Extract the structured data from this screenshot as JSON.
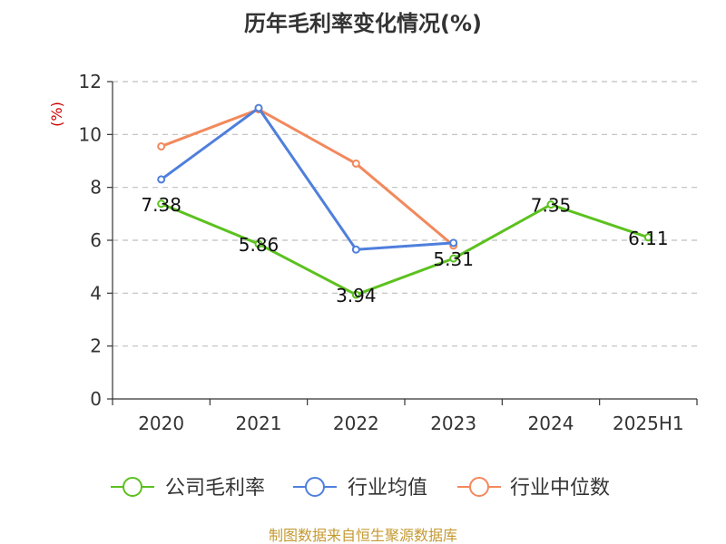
{
  "chart_data": {
    "type": "line",
    "title": "历年毛利率变化情况(%)",
    "ylabel": "(%)",
    "categories": [
      "2020",
      "2021",
      "2022",
      "2023",
      "2024",
      "2025H1"
    ],
    "ylim": [
      0,
      12
    ],
    "yticks": [
      0,
      2,
      4,
      6,
      8,
      10,
      12
    ],
    "grid": true,
    "legend_position": "bottom",
    "series": [
      {
        "name": "公司毛利率",
        "color": "#5cc11f",
        "values": [
          7.38,
          5.86,
          3.94,
          5.31,
          7.35,
          6.11
        ],
        "labels": [
          "7.38",
          "5.86",
          "3.94",
          "5.31",
          "7.35",
          "6.11"
        ]
      },
      {
        "name": "行业均值",
        "color": "#4f7fdc",
        "values": [
          8.3,
          11.0,
          5.65,
          5.9,
          null,
          null
        ]
      },
      {
        "name": "行业中位数",
        "color": "#f2895c",
        "values": [
          9.55,
          10.95,
          8.9,
          5.8,
          null,
          null
        ]
      }
    ]
  },
  "footer": {
    "source": "制图数据来自恒生聚源数据库"
  },
  "colors": {
    "footer": "#c49a32",
    "ylabel": "#cc0000",
    "axis": "#333333",
    "grid": "#bfbfbf"
  }
}
